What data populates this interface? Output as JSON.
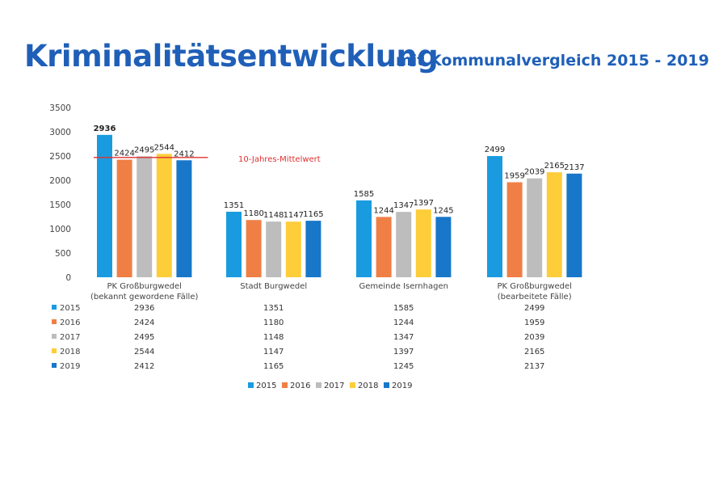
{
  "header": {
    "title": "Kriminalitätsentwicklung",
    "subtitle": "mit Kommunalvergleich 2015 - 2019"
  },
  "colors": {
    "2015": "#1a9be0",
    "2016": "#f07f45",
    "2017": "#bdbdbd",
    "2018": "#fdcd3a",
    "2019": "#1877c9",
    "reference_line": "#e03030"
  },
  "chart_data": {
    "type": "bar",
    "title": "",
    "xlabel": "",
    "ylabel": "",
    "ylim": [
      0,
      3500
    ],
    "yticks": [
      "0",
      "500",
      "1000",
      "1500",
      "2000",
      "2500",
      "3000",
      "3500"
    ],
    "categories": [
      [
        "PK Großburgwedel",
        "(bekannt gewordene Fälle)"
      ],
      [
        "Stadt Burgwedel"
      ],
      [
        "Gemeinde Isernhagen"
      ],
      [
        "PK Großburgwedel",
        "(bearbeitete Fälle)"
      ]
    ],
    "series": [
      {
        "name": "2015",
        "values": [
          2936,
          1351,
          1585,
          2499
        ]
      },
      {
        "name": "2016",
        "values": [
          2424,
          1180,
          1244,
          1959
        ]
      },
      {
        "name": "2017",
        "values": [
          2495,
          1148,
          1347,
          2039
        ]
      },
      {
        "name": "2018",
        "values": [
          2544,
          1147,
          1397,
          2165
        ]
      },
      {
        "name": "2019",
        "values": [
          2412,
          1165,
          1245,
          2137
        ]
      }
    ],
    "reference_line": {
      "label": "10-Jahres-Mittelwert",
      "value": 2470,
      "group": 0
    },
    "grid": false,
    "legend": "bottom",
    "data_table": true
  }
}
